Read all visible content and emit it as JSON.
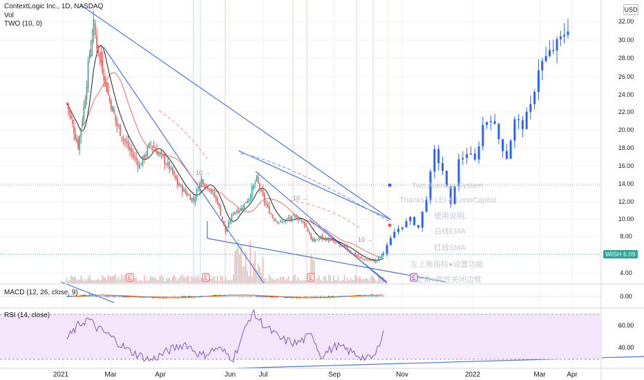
{
  "legend": {
    "main": "ContextLogic Inc., 1D, NASDAQ",
    "vol": "Vol",
    "two": "TWO (10, 0)",
    "macd": "MACD (12, 26, close, 9)",
    "rsi": "RSI (14, close)"
  },
  "price_axis": {
    "currency": "USD",
    "labels": [
      "32.00",
      "30.00",
      "28.00",
      "26.00",
      "24.00",
      "22.00",
      "20.00",
      "18.00",
      "16.00",
      "14.00",
      "12.00",
      "10.00",
      "8.00",
      "4.00"
    ],
    "symbol_tag": "WISH",
    "last_price": "6.09"
  },
  "macd_axis": {
    "labels": [
      "0.00"
    ]
  },
  "rsi_axis": {
    "labels": [
      "60.00",
      "40.00"
    ]
  },
  "time_axis": {
    "labels": [
      "2021",
      "Mar",
      "Apr",
      "Jun",
      "Jul",
      "Sep",
      "Nov",
      "2022",
      "Mar",
      "Apr"
    ]
  },
  "overlay_text": [
    "Two Average System",
    "Thanks to LEI & LoneCapital",
    "使用说明:",
    "白线EMA",
    "红线SMA",
    "左上角指标●设置功能",
    "上角●属性关闭边框"
  ],
  "arrow_labels": [
    "10 →",
    "10 →",
    "10 →"
  ],
  "earnings_marker": "E",
  "colors": {
    "up": "#26a69a",
    "down": "#ef5350",
    "projection": "#2962ff",
    "trend": "#4a72e0",
    "ema": "#1e1e1e",
    "sma": "#f06d5e",
    "macd": "#2962ff",
    "signal": "#ff6d00",
    "rsi": "#7e57c2",
    "rsi_band": "#f3e6fb"
  },
  "chart_data": {
    "type": "candlestick",
    "symbol": "ContextLogic Inc.",
    "exchange": "NASDAQ",
    "interval": "1D",
    "y_range": [
      3,
      33
    ],
    "last_price": 6.09,
    "price_series_weekly_close": [
      {
        "x": "2021-01-06",
        "y": 23.0
      },
      {
        "x": "2021-01-13",
        "y": 20.5
      },
      {
        "x": "2021-01-20",
        "y": 18.2
      },
      {
        "x": "2021-01-27",
        "y": 22.5
      },
      {
        "x": "2021-02-03",
        "y": 28.5
      },
      {
        "x": "2021-02-08",
        "y": 31.5
      },
      {
        "x": "2021-02-12",
        "y": 29.5
      },
      {
        "x": "2021-02-19",
        "y": 27.0
      },
      {
        "x": "2021-02-26",
        "y": 24.0
      },
      {
        "x": "2021-03-05",
        "y": 20.5
      },
      {
        "x": "2021-03-12",
        "y": 18.0
      },
      {
        "x": "2021-03-19",
        "y": 16.0
      },
      {
        "x": "2021-03-26",
        "y": 18.5
      },
      {
        "x": "2021-04-02",
        "y": 17.0
      },
      {
        "x": "2021-04-09",
        "y": 15.8
      },
      {
        "x": "2021-04-16",
        "y": 14.0
      },
      {
        "x": "2021-04-23",
        "y": 13.0
      },
      {
        "x": "2021-04-30",
        "y": 12.2
      },
      {
        "x": "2021-05-07",
        "y": 14.5
      },
      {
        "x": "2021-05-14",
        "y": 13.5
      },
      {
        "x": "2021-05-21",
        "y": 12.0
      },
      {
        "x": "2021-05-28",
        "y": 8.5
      },
      {
        "x": "2021-06-04",
        "y": 10.8
      },
      {
        "x": "2021-06-11",
        "y": 11.2
      },
      {
        "x": "2021-06-18",
        "y": 12.5
      },
      {
        "x": "2021-06-25",
        "y": 14.5
      },
      {
        "x": "2021-07-02",
        "y": 12.0
      },
      {
        "x": "2021-07-09",
        "y": 10.2
      },
      {
        "x": "2021-07-16",
        "y": 9.6
      },
      {
        "x": "2021-07-23",
        "y": 10.0
      },
      {
        "x": "2021-07-30",
        "y": 10.2
      },
      {
        "x": "2021-08-06",
        "y": 9.5
      },
      {
        "x": "2021-08-13",
        "y": 7.4
      },
      {
        "x": "2021-08-20",
        "y": 7.9
      },
      {
        "x": "2021-08-27",
        "y": 7.6
      },
      {
        "x": "2021-09-03",
        "y": 7.2
      },
      {
        "x": "2021-09-10",
        "y": 6.8
      },
      {
        "x": "2021-09-17",
        "y": 6.2
      },
      {
        "x": "2021-09-24",
        "y": 5.6
      },
      {
        "x": "2021-10-01",
        "y": 5.4
      },
      {
        "x": "2021-10-08",
        "y": 5.3
      },
      {
        "x": "2021-10-15",
        "y": 6.09
      }
    ],
    "projection_series": [
      {
        "x": "2021-10-15",
        "y": 6.1
      },
      {
        "x": "2021-10-25",
        "y": 8.5
      },
      {
        "x": "2021-11-08",
        "y": 10.0
      },
      {
        "x": "2021-11-15",
        "y": 9.0
      },
      {
        "x": "2021-11-22",
        "y": 12.5
      },
      {
        "x": "2021-11-29",
        "y": 17.5
      },
      {
        "x": "2021-12-06",
        "y": 15.5
      },
      {
        "x": "2021-12-13",
        "y": 11.5
      },
      {
        "x": "2021-12-20",
        "y": 16.5
      },
      {
        "x": "2021-12-27",
        "y": 17.5
      },
      {
        "x": "2022-01-03",
        "y": 16.5
      },
      {
        "x": "2022-01-10",
        "y": 20.5
      },
      {
        "x": "2022-01-17",
        "y": 21.5
      },
      {
        "x": "2022-01-24",
        "y": 19.0
      },
      {
        "x": "2022-01-31",
        "y": 17.0
      },
      {
        "x": "2022-02-07",
        "y": 21.0
      },
      {
        "x": "2022-02-14",
        "y": 20.5
      },
      {
        "x": "2022-02-21",
        "y": 22.5
      },
      {
        "x": "2022-02-28",
        "y": 27.0
      },
      {
        "x": "2022-03-07",
        "y": 28.0
      },
      {
        "x": "2022-03-14",
        "y": 29.0
      },
      {
        "x": "2022-03-21",
        "y": 30.0
      },
      {
        "x": "2022-03-28",
        "y": 31.5
      }
    ],
    "rsi_range": [
      22,
      74
    ],
    "rsi_bands": [
      70,
      30
    ],
    "rsi_series": [
      {
        "x": "2021-01-06",
        "y": 48
      },
      {
        "x": "2021-01-20",
        "y": 60
      },
      {
        "x": "2021-02-01",
        "y": 66
      },
      {
        "x": "2021-02-12",
        "y": 58
      },
      {
        "x": "2021-02-26",
        "y": 52
      },
      {
        "x": "2021-03-12",
        "y": 38
      },
      {
        "x": "2021-03-26",
        "y": 29
      },
      {
        "x": "2021-04-09",
        "y": 38
      },
      {
        "x": "2021-04-23",
        "y": 44
      },
      {
        "x": "2021-05-07",
        "y": 33
      },
      {
        "x": "2021-05-21",
        "y": 40
      },
      {
        "x": "2021-06-04",
        "y": 31
      },
      {
        "x": "2021-06-11",
        "y": 48
      },
      {
        "x": "2021-06-21",
        "y": 72
      },
      {
        "x": "2021-07-02",
        "y": 60
      },
      {
        "x": "2021-07-16",
        "y": 48
      },
      {
        "x": "2021-07-30",
        "y": 44
      },
      {
        "x": "2021-08-13",
        "y": 52
      },
      {
        "x": "2021-08-20",
        "y": 33
      },
      {
        "x": "2021-09-03",
        "y": 42
      },
      {
        "x": "2021-09-17",
        "y": 36
      },
      {
        "x": "2021-10-01",
        "y": 30
      },
      {
        "x": "2021-10-08",
        "y": 33
      },
      {
        "x": "2021-10-15",
        "y": 57
      }
    ]
  }
}
